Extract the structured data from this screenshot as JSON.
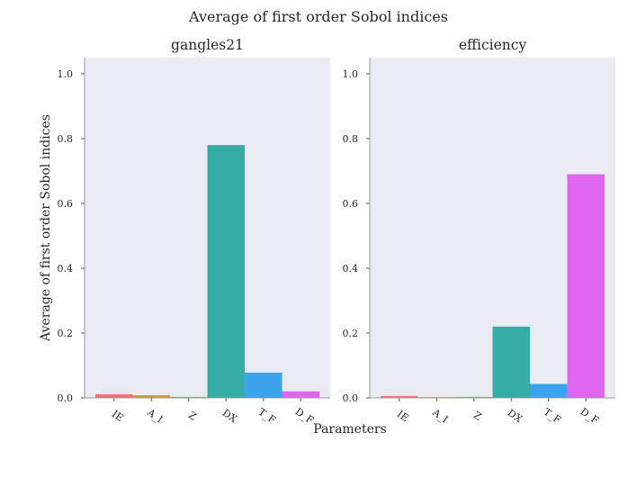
{
  "figure": {
    "title": "Average of first order Sobol indices",
    "xlabel": "Parameters",
    "ylabel": "Average of first order Sobol indices"
  },
  "chart_data": [
    {
      "type": "bar",
      "title": "gangles21",
      "categories": [
        "IE",
        "A_I",
        "Z",
        "DX",
        "T_F",
        "D_F"
      ],
      "values": [
        0.011,
        0.008,
        0.003,
        0.78,
        0.078,
        0.02
      ],
      "colors": [
        "#f0737c",
        "#c89a3a",
        "#7bb45a",
        "#36ada4",
        "#3ba3ec",
        "#e066f0"
      ],
      "ylim": [
        0,
        1.05
      ],
      "yticks": [
        0.0,
        0.2,
        0.4,
        0.6,
        0.8,
        1.0
      ],
      "ytick_labels": [
        "0.0",
        "0.2",
        "0.4",
        "0.6",
        "0.8",
        "1.0"
      ]
    },
    {
      "type": "bar",
      "title": "efficiency",
      "categories": [
        "IE",
        "A_I",
        "Z",
        "DX",
        "T_F",
        "D_F"
      ],
      "values": [
        0.006,
        0.001,
        0.003,
        0.22,
        0.043,
        0.69
      ],
      "colors": [
        "#f0737c",
        "#c89a3a",
        "#7bb45a",
        "#36ada4",
        "#3ba3ec",
        "#e066f0"
      ],
      "ylim": [
        0,
        1.05
      ],
      "yticks": [
        0.0,
        0.2,
        0.4,
        0.6,
        0.8,
        1.0
      ],
      "ytick_labels": [
        "0.0",
        "0.2",
        "0.4",
        "0.6",
        "0.8",
        "1.0"
      ]
    }
  ]
}
